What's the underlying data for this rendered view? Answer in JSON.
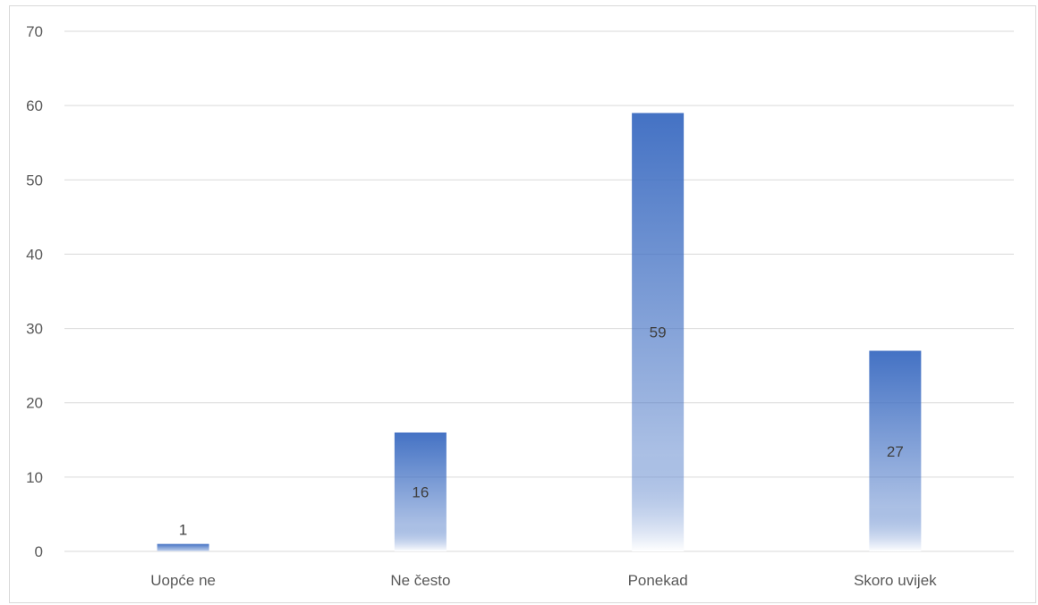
{
  "chart_data": {
    "type": "bar",
    "title": "",
    "xlabel": "",
    "ylabel": "",
    "categories": [
      "Uopće ne",
      "Ne često",
      "Ponekad",
      "Skoro uvijek"
    ],
    "values": [
      1,
      16,
      59,
      27
    ],
    "data_labels": [
      "1",
      "16",
      "59",
      "27"
    ],
    "ylim": [
      0,
      70
    ],
    "y_ticks": [
      0,
      10,
      20,
      30,
      40,
      50,
      60,
      70
    ],
    "y_tick_labels": [
      "0",
      "10",
      "20",
      "30",
      "40",
      "50",
      "60",
      "70"
    ],
    "grid": true,
    "legend": "none",
    "bar_fill": "gradient",
    "colors": {
      "bar_top": "#4472c4",
      "bar_bottom": "#ffffff",
      "gridline": "#d9d9d9",
      "axis_text": "#595959",
      "data_label_text": "#404040"
    }
  }
}
